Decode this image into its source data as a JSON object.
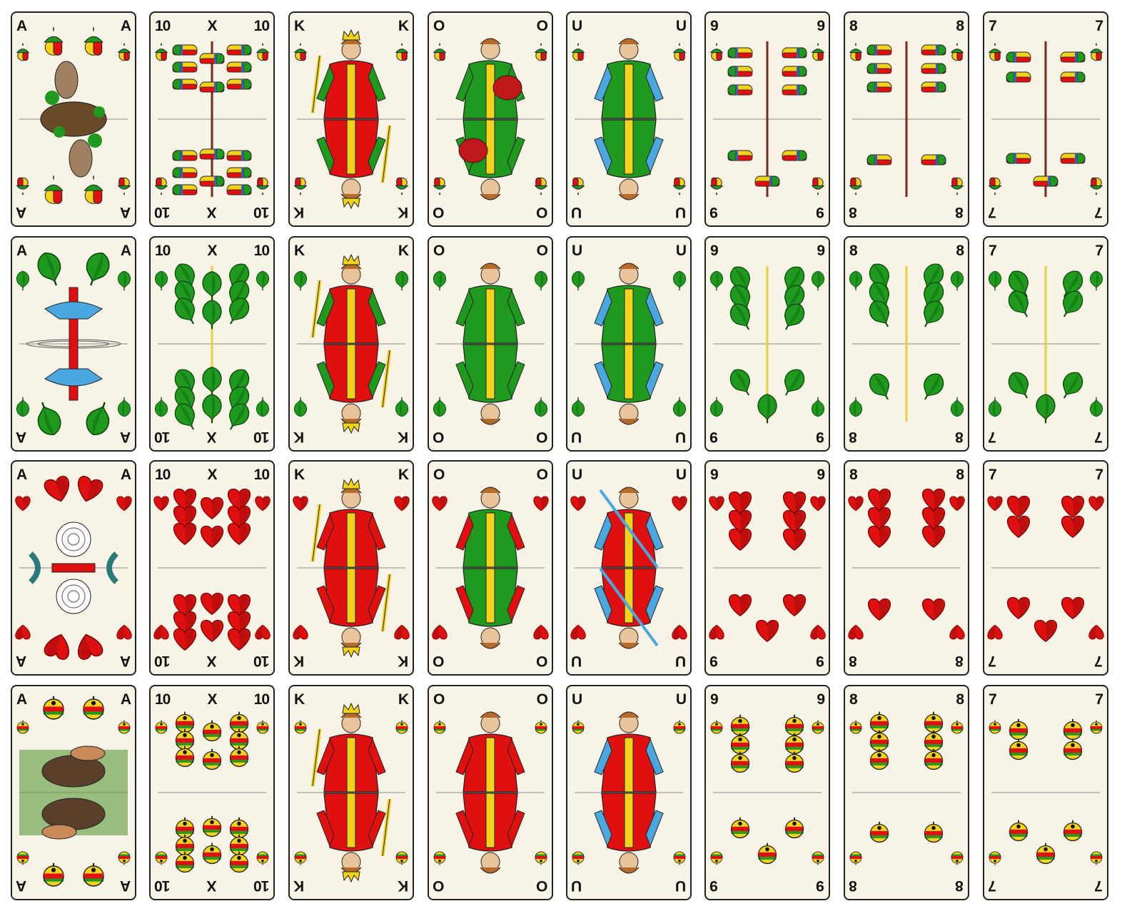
{
  "rows": [
    {
      "suit": "acorns",
      "cards": [
        {
          "rank": "A",
          "center": "",
          "kind": "ace"
        },
        {
          "rank": "10",
          "center": "X",
          "kind": "pips",
          "n": 10
        },
        {
          "rank": "K",
          "center": "",
          "kind": "face"
        },
        {
          "rank": "O",
          "center": "",
          "kind": "face"
        },
        {
          "rank": "U",
          "center": "",
          "kind": "face"
        },
        {
          "rank": "9",
          "center": "",
          "kind": "pips",
          "n": 9
        },
        {
          "rank": "8",
          "center": "",
          "kind": "pips",
          "n": 8
        },
        {
          "rank": "7",
          "center": "",
          "kind": "pips",
          "n": 7
        }
      ]
    },
    {
      "suit": "leaves",
      "cards": [
        {
          "rank": "A",
          "center": "",
          "kind": "ace"
        },
        {
          "rank": "10",
          "center": "X",
          "kind": "pips",
          "n": 10
        },
        {
          "rank": "K",
          "center": "",
          "kind": "face"
        },
        {
          "rank": "O",
          "center": "",
          "kind": "face"
        },
        {
          "rank": "U",
          "center": "",
          "kind": "face"
        },
        {
          "rank": "9",
          "center": "",
          "kind": "pips",
          "n": 9
        },
        {
          "rank": "8",
          "center": "",
          "kind": "pips",
          "n": 8
        },
        {
          "rank": "7",
          "center": "",
          "kind": "pips",
          "n": 7
        }
      ]
    },
    {
      "suit": "hearts",
      "cards": [
        {
          "rank": "A",
          "center": "",
          "kind": "ace"
        },
        {
          "rank": "10",
          "center": "X",
          "kind": "pips",
          "n": 10
        },
        {
          "rank": "K",
          "center": "",
          "kind": "face"
        },
        {
          "rank": "O",
          "center": "",
          "kind": "face"
        },
        {
          "rank": "U",
          "center": "",
          "kind": "face"
        },
        {
          "rank": "9",
          "center": "",
          "kind": "pips",
          "n": 9
        },
        {
          "rank": "8",
          "center": "",
          "kind": "pips",
          "n": 8
        },
        {
          "rank": "7",
          "center": "",
          "kind": "pips",
          "n": 7
        }
      ]
    },
    {
      "suit": "bells",
      "cards": [
        {
          "rank": "A",
          "center": "",
          "kind": "ace"
        },
        {
          "rank": "10",
          "center": "X",
          "kind": "pips",
          "n": 10
        },
        {
          "rank": "K",
          "center": "",
          "kind": "face"
        },
        {
          "rank": "O",
          "center": "",
          "kind": "face"
        },
        {
          "rank": "U",
          "center": "",
          "kind": "face"
        },
        {
          "rank": "9",
          "center": "",
          "kind": "pips",
          "n": 9
        },
        {
          "rank": "8",
          "center": "",
          "kind": "pips",
          "n": 8
        },
        {
          "rank": "7",
          "center": "",
          "kind": "pips",
          "n": 7
        }
      ]
    }
  ],
  "colors": {
    "card_face": "#f7f3e6",
    "border": "#222222",
    "red": "#e01010",
    "dark_red": "#a80e0e",
    "green": "#1f9a1f",
    "dark_green": "#0e6a0e",
    "yellow": "#f2d21a",
    "blue": "#4aa7e0",
    "brown": "#6b4a2a",
    "skin": "#e9c49a"
  }
}
